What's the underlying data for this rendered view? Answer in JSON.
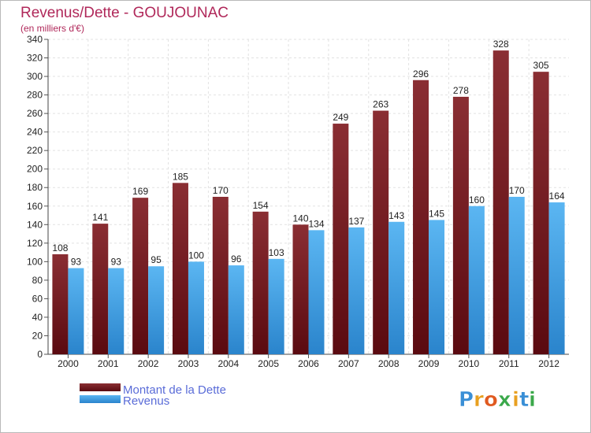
{
  "chart_data": {
    "type": "bar",
    "title": "Revenus/Dette - GOUJOUNAC",
    "subtitle": "(en milliers d'€)",
    "categories": [
      "2000",
      "2001",
      "2002",
      "2003",
      "2004",
      "2005",
      "2006",
      "2007",
      "2008",
      "2009",
      "2010",
      "2011",
      "2012"
    ],
    "series": [
      {
        "name": "Montant de la Dette",
        "color": "#7a1a1e",
        "values": [
          108,
          141,
          169,
          185,
          170,
          154,
          140,
          249,
          263,
          296,
          278,
          328,
          305
        ]
      },
      {
        "name": "Revenus",
        "color": "#3a9ee6",
        "values": [
          93,
          93,
          95,
          100,
          96,
          103,
          134,
          137,
          143,
          145,
          160,
          170,
          164
        ]
      }
    ],
    "ylim": [
      0,
      340
    ],
    "ytick_step": 20,
    "grid": true,
    "legend_position": "bottom-left",
    "data_labels": true
  },
  "logo": {
    "letters": [
      "P",
      "r",
      "o",
      "x",
      "i",
      "t",
      "i"
    ],
    "colors": [
      "#3a8fd6",
      "#e8a020",
      "#e05a20",
      "#3aa84a",
      "#e8a020",
      "#3a8fd6",
      "#3aa84a"
    ]
  }
}
